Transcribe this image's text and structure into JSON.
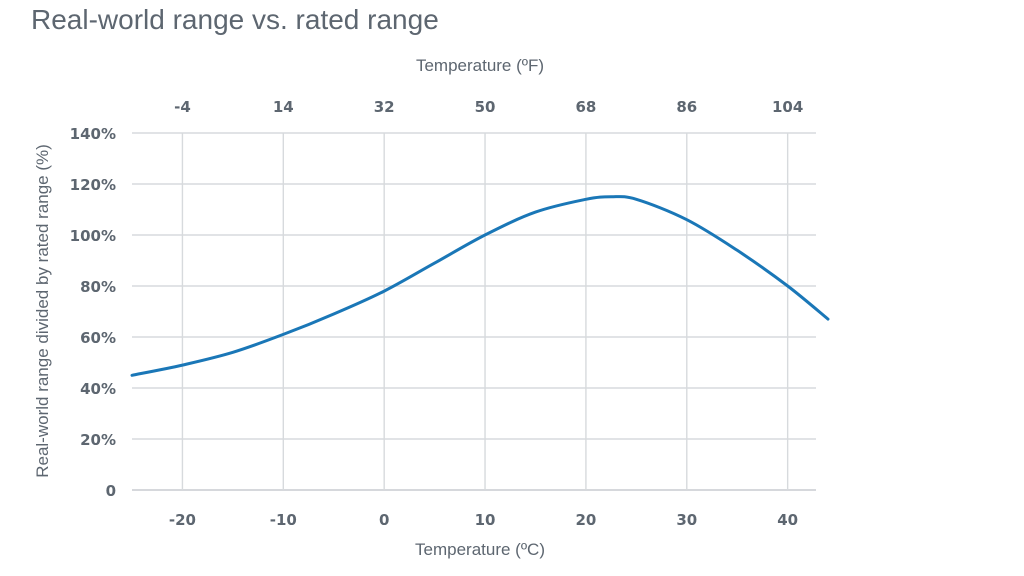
{
  "chart_data": {
    "type": "line",
    "title": "Real-world range vs. rated range",
    "xlabel": "Temperature (ºC)",
    "x2label": "Temperature (ºF)",
    "ylabel": "Real-world range divided by rated range (%)",
    "xlim": [
      -25,
      44
    ],
    "ylim": [
      0,
      140
    ],
    "xticks": [
      -20,
      -10,
      0,
      10,
      20,
      30,
      40
    ],
    "xtick_labels": [
      "-20",
      "-10",
      "0",
      "10",
      "20",
      "30",
      "40"
    ],
    "x2ticks": [
      -20,
      -10,
      0,
      10,
      20,
      30,
      40
    ],
    "x2tick_labels": [
      "-4",
      "14",
      "32",
      "50",
      "68",
      "86",
      "104"
    ],
    "yticks": [
      0,
      20,
      40,
      60,
      80,
      100,
      120,
      140
    ],
    "ytick_labels": [
      "0",
      "20%",
      "40%",
      "60%",
      "80%",
      "100%",
      "120%",
      "140%"
    ],
    "grid": true,
    "line_color": "#1a77b7",
    "series": [
      {
        "x": [
          -25,
          -20,
          -15,
          -10,
          -5,
          0,
          5,
          10,
          15,
          20,
          22.5,
          25,
          30,
          35,
          40,
          44
        ],
        "y": [
          45,
          49,
          54,
          61,
          69,
          78,
          89,
          100,
          109,
          114,
          115,
          114,
          106,
          94,
          80,
          67
        ]
      }
    ]
  }
}
